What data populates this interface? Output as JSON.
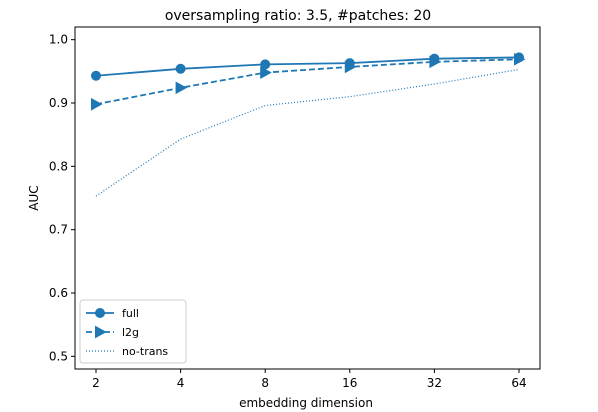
{
  "chart_data": {
    "type": "line",
    "title": "oversampling ratio: 3.5, #patches: 20",
    "xlabel": "embedding dimension",
    "ylabel": "AUC",
    "categories": [
      "2",
      "4",
      "8",
      "16",
      "32",
      "64"
    ],
    "ylim": [
      0.48,
      1.02
    ],
    "yticks": [
      "0.5",
      "0.6",
      "0.7",
      "0.8",
      "0.9",
      "1.0"
    ],
    "grid": false,
    "legend_position": "lower-left",
    "series": [
      {
        "name": "full",
        "values": [
          0.943,
          0.954,
          0.961,
          0.963,
          0.97,
          0.972
        ],
        "marker": "circle",
        "linestyle": "solid",
        "color": "#1f77b4"
      },
      {
        "name": "l2g",
        "values": [
          0.898,
          0.924,
          0.948,
          0.957,
          0.965,
          0.969
        ],
        "marker": "triangle-right",
        "linestyle": "dashed",
        "color": "#1f77b4"
      },
      {
        "name": "no-trans",
        "values": [
          0.753,
          0.843,
          0.896,
          0.91,
          0.93,
          0.953
        ],
        "marker": "none",
        "linestyle": "dotted",
        "color": "#1f77b4"
      }
    ]
  }
}
